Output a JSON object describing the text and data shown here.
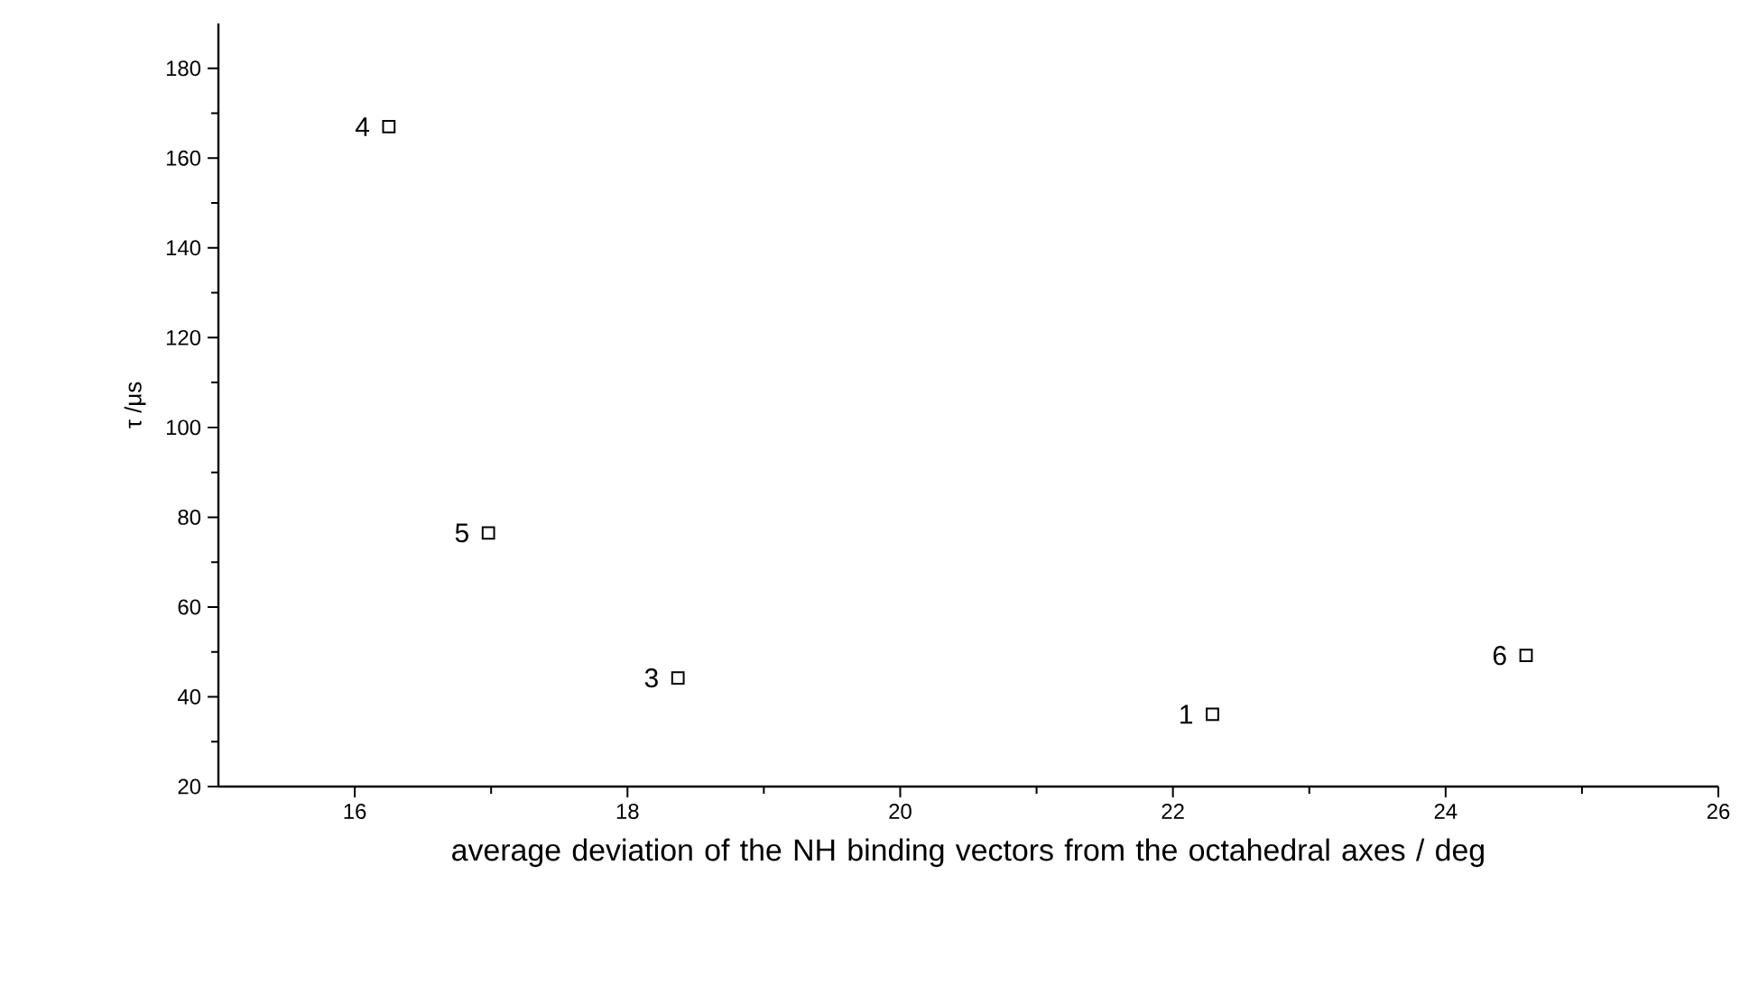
{
  "chart_data": {
    "type": "scatter",
    "xlabel": "average deviation of the NH binding vectors from the octahedral axes / deg",
    "ylabel": "τ /μs",
    "x": [
      22.29,
      18.37,
      16.25,
      16.98,
      24.59
    ],
    "values": [
      36.1,
      44.2,
      167,
      76.5,
      49.2
    ],
    "color": "#000000",
    "marker": "square",
    "xlim": [
      15,
      26
    ],
    "ylim": [
      20,
      190
    ],
    "xticks": [
      16,
      18,
      20,
      22,
      24,
      26
    ],
    "yticks": [
      20,
      40,
      60,
      80,
      100,
      120,
      140,
      160,
      180
    ],
    "annotations": [
      {
        "text": "1",
        "x": 22.29,
        "y": 36.1
      },
      {
        "text": "3",
        "x": 18.37,
        "y": 44.2
      },
      {
        "text": "4",
        "x": 16.25,
        "y": 167
      },
      {
        "text": "5",
        "x": 16.98,
        "y": 76.5
      },
      {
        "text": "6",
        "x": 24.59,
        "y": 49.2
      }
    ]
  }
}
